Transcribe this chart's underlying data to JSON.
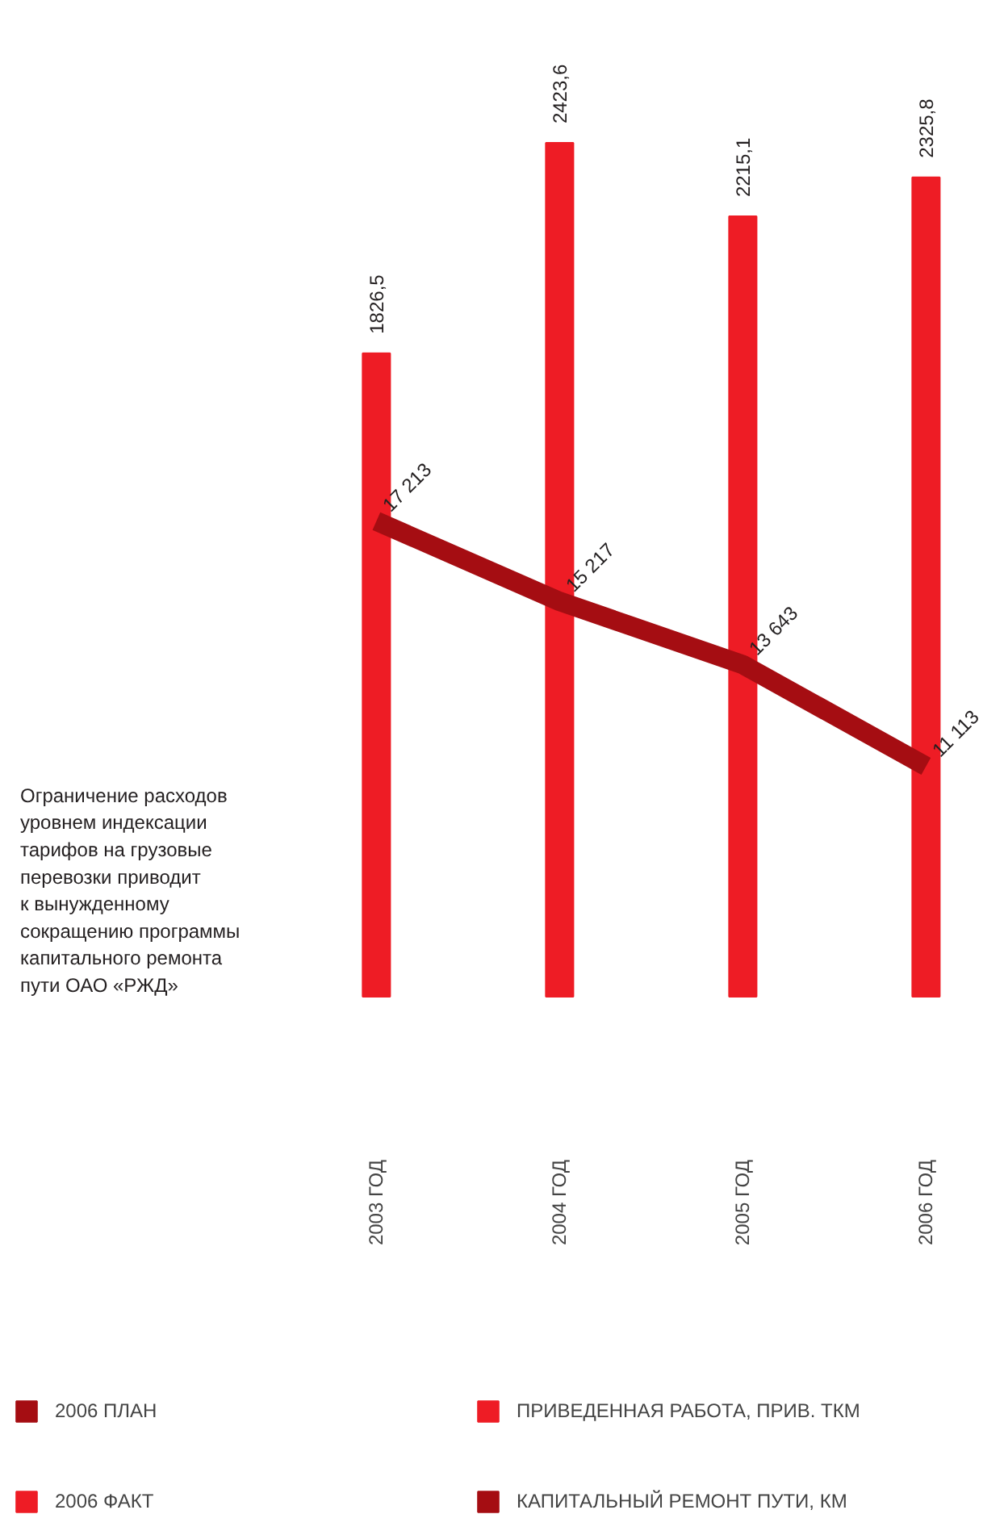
{
  "chart_data": {
    "type": "bar",
    "categories": [
      "2003 ГОД",
      "2004 ГОД",
      "2005 ГОД",
      "2006 ГОД"
    ],
    "series": [
      {
        "name": "2006 ПЛАН",
        "color": "#a50d12",
        "values": [
          null,
          null,
          null,
          null
        ]
      },
      {
        "name": "2006 ФАКТ",
        "color": "#ee1c25",
        "values": [
          null,
          null,
          null,
          null
        ]
      },
      {
        "name": "ПРИВЕДЕННАЯ РАБОТА, ПРИВ. ТКМ",
        "color": "#ee1c25",
        "values": [
          1826.5,
          2423.6,
          2215.1,
          2325.8
        ],
        "value_labels": [
          "1826,5",
          "2423,6",
          "2215,1",
          "2325,8"
        ]
      },
      {
        "name": "КАПИТАЛЬНЫЙ РЕМОНТ ПУТИ, КМ",
        "type": "line",
        "axis": "y2",
        "color": "#a50d12",
        "values": [
          17213,
          15217,
          13643,
          11113
        ],
        "value_labels": [
          "17 213",
          "15 217",
          "13 643",
          "11 113"
        ]
      }
    ],
    "data_labels": true,
    "legend": "bottom",
    "annotations": [
      "Ограничение расходов\nуровнем индексации\nтарифов на грузовые\nперевозки приводит\nк вынужденному\nсокращению программы\nкапитального ремонта\nпути ОАО «РЖД»"
    ]
  }
}
